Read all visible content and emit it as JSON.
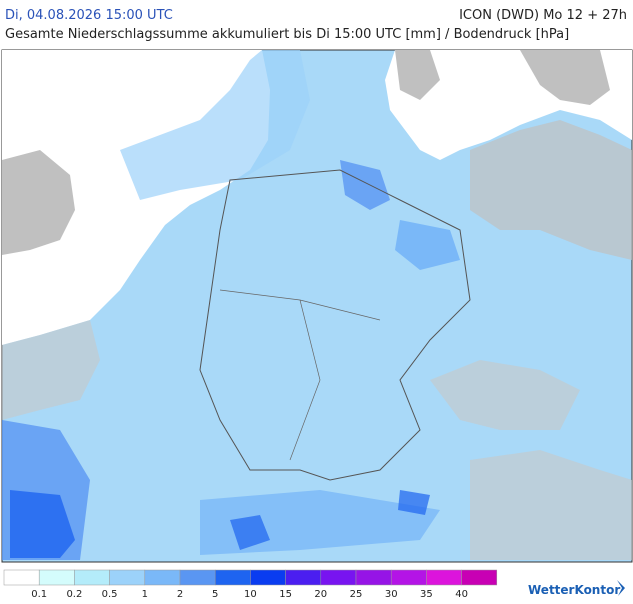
{
  "header": {
    "left": "Di, 04.08.2026 15:00 UTC",
    "right": "ICON (DWD) Mo 12 + 27h",
    "subtitle": "Gesamte Niederschlagssumme akkumuliert bis Di 15:00 UTC [mm] / Bodendruck [hPa]"
  },
  "legend": {
    "colors": [
      "#ffffff",
      "#d4fcfc",
      "#b4ecfa",
      "#9cd2fa",
      "#7ab8f8",
      "#5a96f2",
      "#1e64f0",
      "#0a3cf0",
      "#4b1ef0",
      "#7814f0",
      "#9614e6",
      "#b414e6",
      "#dc14dc",
      "#c800b4"
    ],
    "labels": [
      0.1,
      0.2,
      0.5,
      1,
      2,
      5,
      10,
      15,
      20,
      25,
      30,
      35,
      40
    ]
  },
  "brand": "WetterKontor"
}
